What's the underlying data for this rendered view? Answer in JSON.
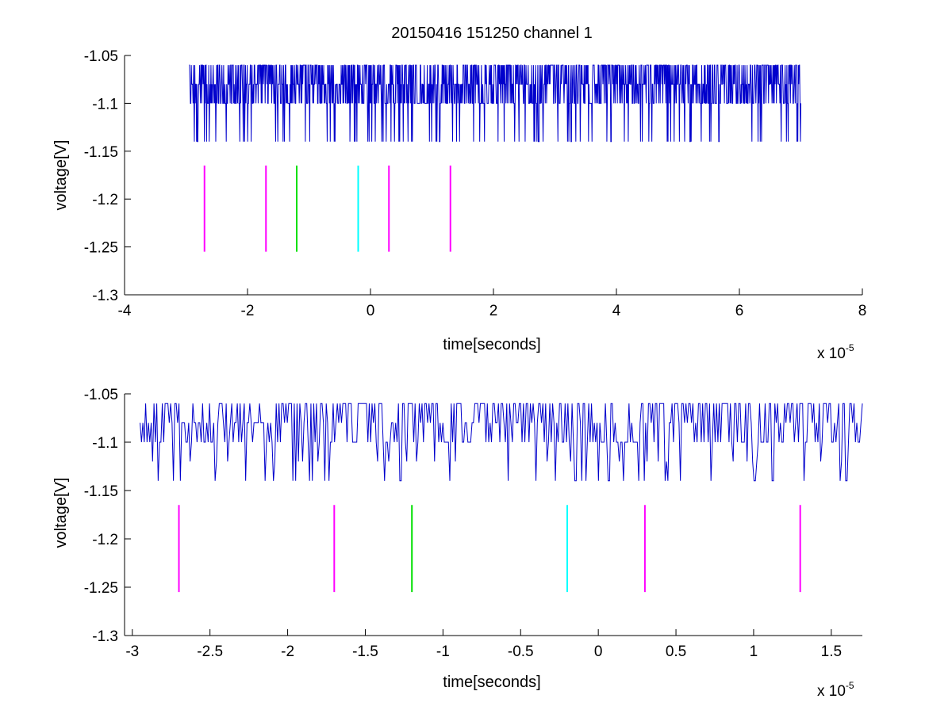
{
  "figure": {
    "title": "20150416 151250 channel 1"
  },
  "colors": {
    "signal": "#0000cc",
    "marker_magenta": "#ff00ff",
    "marker_green": "#00e000",
    "marker_cyan": "#00ffff",
    "axis": "#000000",
    "background": "#ffffff"
  },
  "chart_data": [
    {
      "type": "line",
      "title": "20150416 151250 channel 1",
      "xlabel": "time[seconds]",
      "ylabel": "voltage[V]",
      "x_multiplier": "x 10",
      "x_exponent": "-5",
      "xlim": [
        -4,
        8
      ],
      "ylim": [
        -1.3,
        -1.05
      ],
      "xticks": [
        -4,
        -2,
        0,
        2,
        4,
        6,
        8
      ],
      "xtick_labels": [
        "-4",
        "-2",
        "0",
        "2",
        "4",
        "6",
        "8"
      ],
      "yticks": [
        -1.3,
        -1.25,
        -1.2,
        -1.15,
        -1.1,
        -1.05
      ],
      "ytick_labels": [
        "-1.3",
        "-1.25",
        "-1.2",
        "-1.15",
        "-1.1",
        "-1.05"
      ],
      "grid": false,
      "series": [
        {
          "kind": "signal",
          "color": "#0000cc",
          "x_range": [
            -2.95,
            7.0
          ],
          "levels": [
            -1.06,
            -1.08,
            -1.1,
            -1.14
          ],
          "baseline": -1.1
        }
      ],
      "markers": [
        {
          "x": -2.7,
          "y_range": [
            -1.255,
            -1.165
          ],
          "color": "magenta"
        },
        {
          "x": -1.7,
          "y_range": [
            -1.255,
            -1.165
          ],
          "color": "magenta"
        },
        {
          "x": -1.2,
          "y_range": [
            -1.255,
            -1.165
          ],
          "color": "green"
        },
        {
          "x": -0.2,
          "y_range": [
            -1.255,
            -1.165
          ],
          "color": "cyan"
        },
        {
          "x": 0.3,
          "y_range": [
            -1.255,
            -1.165
          ],
          "color": "magenta"
        },
        {
          "x": 1.3,
          "y_range": [
            -1.255,
            -1.165
          ],
          "color": "magenta"
        }
      ]
    },
    {
      "type": "line",
      "title": "",
      "xlabel": "time[seconds]",
      "ylabel": "voltage[V]",
      "x_multiplier": "x 10",
      "x_exponent": "-5",
      "xlim": [
        -3.05,
        1.7
      ],
      "ylim": [
        -1.3,
        -1.05
      ],
      "xticks": [
        -3,
        -2.5,
        -2,
        -1.5,
        -1,
        -0.5,
        0,
        0.5,
        1,
        1.5
      ],
      "xtick_labels": [
        "-3",
        "-2.5",
        "-2",
        "-1.5",
        "-1",
        "-0.5",
        "0",
        "0.5",
        "1",
        "1.5"
      ],
      "yticks": [
        -1.3,
        -1.25,
        -1.2,
        -1.15,
        -1.1,
        -1.05
      ],
      "ytick_labels": [
        "-1.3",
        "-1.25",
        "-1.2",
        "-1.15",
        "-1.1",
        "-1.05"
      ],
      "grid": false,
      "series": [
        {
          "kind": "signal",
          "color": "#0000cc",
          "x_range": [
            -2.95,
            1.7
          ],
          "levels": [
            -1.06,
            -1.08,
            -1.1,
            -1.12,
            -1.14
          ],
          "baseline": -1.1
        }
      ],
      "markers": [
        {
          "x": -2.7,
          "y_range": [
            -1.255,
            -1.165
          ],
          "color": "magenta"
        },
        {
          "x": -1.7,
          "y_range": [
            -1.255,
            -1.165
          ],
          "color": "magenta"
        },
        {
          "x": -1.2,
          "y_range": [
            -1.255,
            -1.165
          ],
          "color": "green"
        },
        {
          "x": -0.2,
          "y_range": [
            -1.255,
            -1.165
          ],
          "color": "cyan"
        },
        {
          "x": 0.3,
          "y_range": [
            -1.255,
            -1.165
          ],
          "color": "magenta"
        },
        {
          "x": 1.3,
          "y_range": [
            -1.255,
            -1.165
          ],
          "color": "magenta"
        }
      ]
    }
  ]
}
